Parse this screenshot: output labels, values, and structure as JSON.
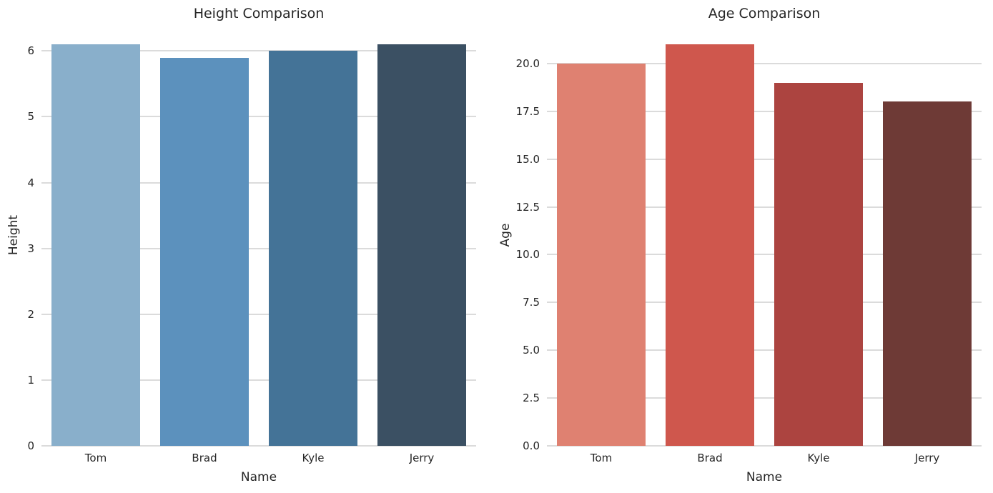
{
  "style": {
    "background_color": "#ffffff",
    "grid_color": "#dbdbdb",
    "text_color": "#262626"
  },
  "chart_data": [
    {
      "type": "bar",
      "title": "Height Comparison",
      "xlabel": "Name",
      "ylabel": "Height",
      "categories": [
        "Tom",
        "Brad",
        "Kyle",
        "Jerry"
      ],
      "values": [
        6.1,
        5.9,
        6.0,
        6.1
      ],
      "bar_colors": [
        "#89AFCB",
        "#5C91BD",
        "#447397",
        "#3B5063"
      ],
      "yticks": [
        0,
        1,
        2,
        3,
        4,
        5,
        6
      ],
      "ytick_labels": [
        "0",
        "1",
        "2",
        "3",
        "4",
        "5",
        "6"
      ],
      "ylim": [
        0,
        6.405
      ],
      "grid": true,
      "legend": false
    },
    {
      "type": "bar",
      "title": "Age Comparison",
      "xlabel": "Name",
      "ylabel": "Age",
      "categories": [
        "Tom",
        "Brad",
        "Kyle",
        "Jerry"
      ],
      "values": [
        20,
        21,
        19,
        18
      ],
      "bar_colors": [
        "#DF8171",
        "#CF574D",
        "#AC4440",
        "#6E3A36"
      ],
      "yticks": [
        0,
        2.5,
        5,
        7.5,
        10,
        12.5,
        15,
        17.5,
        20
      ],
      "ytick_labels": [
        "0.0",
        "2.5",
        "5.0",
        "7.5",
        "10.0",
        "12.5",
        "15.0",
        "17.5",
        "20.0"
      ],
      "ylim": [
        0,
        22.05
      ],
      "grid": true,
      "legend": false
    }
  ]
}
